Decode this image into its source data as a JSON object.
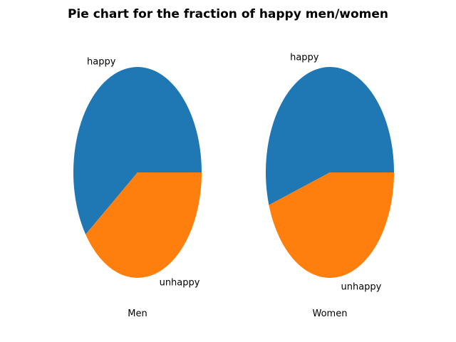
{
  "figure": {
    "title": "Pie chart for the fraction of happy men/women"
  },
  "chart_data": [
    {
      "type": "pie",
      "title": "Men",
      "labels": [
        "happy",
        "unhappy"
      ],
      "values": [
        0.6,
        0.4
      ],
      "colors": [
        "#1f77b4",
        "#ff7f0e"
      ],
      "startangle": 0,
      "direction": "counterclockwise",
      "legend": "none"
    },
    {
      "type": "pie",
      "title": "Women",
      "labels": [
        "happy",
        "unhappy"
      ],
      "values": [
        0.55,
        0.45
      ],
      "colors": [
        "#1f77b4",
        "#ff7f0e"
      ],
      "startangle": 0,
      "direction": "counterclockwise",
      "legend": "none"
    }
  ]
}
